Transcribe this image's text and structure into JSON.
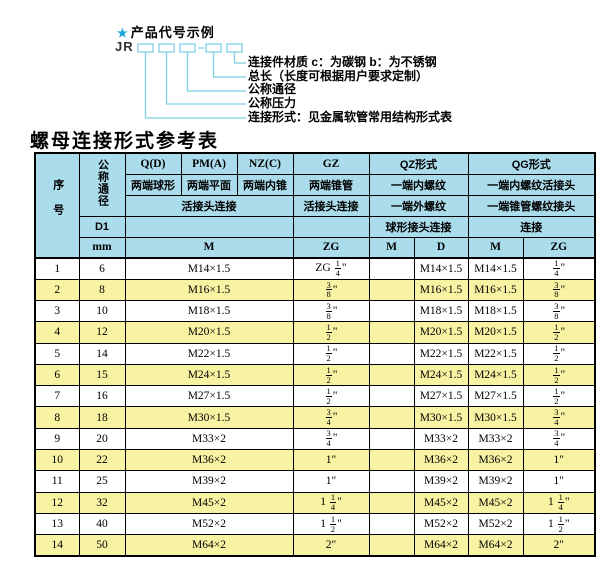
{
  "colors": {
    "header_blue": "#aadcec",
    "stripe_yellow": "#f8f2a3",
    "line_blue": "#7ecfe3",
    "star_blue": "#1da4d8",
    "border": "#000000"
  },
  "diagram": {
    "star": "★",
    "example_label": "产品代号示例",
    "prefix": "JR",
    "callouts": [
      {
        "label": "连接件材质  c：为碳钢  b：为不锈钢"
      },
      {
        "label": "总长（长度可根据用户要求定制）"
      },
      {
        "label": "公称通径"
      },
      {
        "label": "公称压力"
      },
      {
        "label": "连接形式：见金属软管常用结构形式表"
      }
    ]
  },
  "table": {
    "title": "螺母连接形式参考表",
    "header": {
      "col_seq": "序号",
      "col_dn": "公称通径",
      "row_d1": "D1",
      "row_unit": "mm",
      "types": [
        "Q(D)",
        "PM(A)",
        "NZ(C)",
        "GZ",
        "QZ形式",
        "QG形式"
      ],
      "ends": [
        "两端球形",
        "两端平面",
        "两端内锥",
        "两端锥管",
        "一端内螺纹",
        "一端内螺纹活接头"
      ],
      "conn": [
        "活接头连接",
        "活接头连接",
        "一端外螺纹",
        "一端锥管螺纹接头"
      ],
      "conn2": [
        "球形接头连接",
        "连接"
      ],
      "units": [
        "M",
        "ZG",
        "M",
        "D",
        "M",
        "ZG"
      ]
    },
    "rows": [
      {
        "no": "1",
        "dn": "6",
        "m": "M14×1.5",
        "gz": "ZG 1/4\"",
        "qz_m": "",
        "qz_d": "M14×1.5",
        "qg_m": "M14×1.5",
        "qg_zg": "1/4\""
      },
      {
        "no": "2",
        "dn": "8",
        "m": "M16×1.5",
        "gz": "3/8\"",
        "qz_m": "",
        "qz_d": "M16×1.5",
        "qg_m": "M16×1.5",
        "qg_zg": "3/8\""
      },
      {
        "no": "3",
        "dn": "10",
        "m": "M18×1.5",
        "gz": "3/8\"",
        "qz_m": "",
        "qz_d": "M18×1.5",
        "qg_m": "M18×1.5",
        "qg_zg": "3/8\""
      },
      {
        "no": "4",
        "dn": "12",
        "m": "M20×1.5",
        "gz": "1/2\"",
        "qz_m": "",
        "qz_d": "M20×1.5",
        "qg_m": "M20×1.5",
        "qg_zg": "1/2\""
      },
      {
        "no": "5",
        "dn": "14",
        "m": "M22×1.5",
        "gz": "1/2\"",
        "qz_m": "",
        "qz_d": "M22×1.5",
        "qg_m": "M22×1.5",
        "qg_zg": "1/2\""
      },
      {
        "no": "6",
        "dn": "15",
        "m": "M24×1.5",
        "gz": "1/2\"",
        "qz_m": "",
        "qz_d": "M24×1.5",
        "qg_m": "M24×1.5",
        "qg_zg": "1/2\""
      },
      {
        "no": "7",
        "dn": "16",
        "m": "M27×1.5",
        "gz": "1/2\"",
        "qz_m": "",
        "qz_d": "M27×1.5",
        "qg_m": "M27×1.5",
        "qg_zg": "1/2\""
      },
      {
        "no": "8",
        "dn": "18",
        "m": "M30×1.5",
        "gz": "3/4\"",
        "qz_m": "",
        "qz_d": "M30×1.5",
        "qg_m": "M30×1.5",
        "qg_zg": "3/4\""
      },
      {
        "no": "9",
        "dn": "20",
        "m": "M33×2",
        "gz": "3/4\"",
        "qz_m": "",
        "qz_d": "M33×2",
        "qg_m": "M33×2",
        "qg_zg": "3/4\""
      },
      {
        "no": "10",
        "dn": "22",
        "m": "M36×2",
        "gz": "1\"",
        "qz_m": "",
        "qz_d": "M36×2",
        "qg_m": "M36×2",
        "qg_zg": "1\""
      },
      {
        "no": "11",
        "dn": "25",
        "m": "M39×2",
        "gz": "1\"",
        "qz_m": "",
        "qz_d": "M39×2",
        "qg_m": "M39×2",
        "qg_zg": "1\""
      },
      {
        "no": "12",
        "dn": "32",
        "m": "M45×2",
        "gz": "1 1/4\"",
        "qz_m": "",
        "qz_d": "M45×2",
        "qg_m": "M45×2",
        "qg_zg": "1 1/4\""
      },
      {
        "no": "13",
        "dn": "40",
        "m": "M52×2",
        "gz": "1 1/2\"",
        "qz_m": "",
        "qz_d": "M52×2",
        "qg_m": "M52×2",
        "qg_zg": "1 1/2\""
      },
      {
        "no": "14",
        "dn": "50",
        "m": "M64×2",
        "gz": "2\"",
        "qz_m": "",
        "qz_d": "M64×2",
        "qg_m": "M64×2",
        "qg_zg": "2\""
      }
    ]
  }
}
